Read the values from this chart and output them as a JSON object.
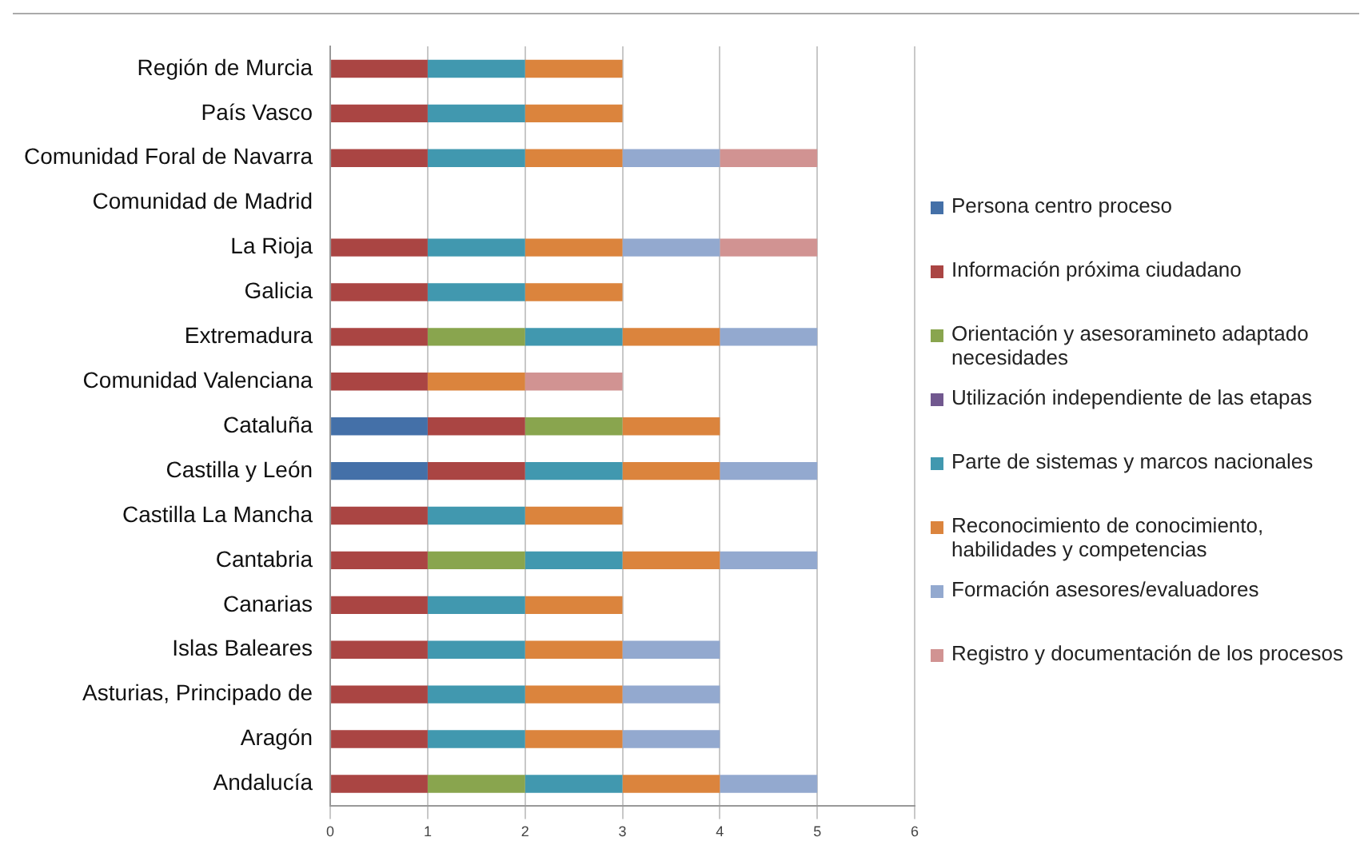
{
  "chart_data": {
    "type": "bar",
    "orientation": "horizontal",
    "stacked": true,
    "categories": [
      "Región de Murcia",
      "País Vasco",
      "Comunidad Foral de Navarra",
      "Comunidad de Madrid",
      "La Rioja",
      "Galicia",
      "Extremadura",
      "Comunidad Valenciana",
      "Cataluña",
      "Castilla y León",
      "Castilla La Mancha",
      "Cantabria",
      "Canarias",
      "Islas Baleares",
      "Asturias, Principado de",
      "Aragón",
      "Andalucía"
    ],
    "series": [
      {
        "name": "Persona centro proceso",
        "color": "#4470a8",
        "values": [
          0,
          0,
          0,
          0,
          0,
          0,
          0,
          0,
          1,
          1,
          0,
          0,
          0,
          0,
          0,
          0,
          0
        ]
      },
      {
        "name": "Información próxima ciudadano",
        "color": "#aa4543",
        "values": [
          1,
          1,
          1,
          0,
          1,
          1,
          1,
          1,
          1,
          1,
          1,
          1,
          1,
          1,
          1,
          1,
          1
        ]
      },
      {
        "name": "Orientación y asesoramineto adaptado necesidades",
        "color": "#89a54e",
        "values": [
          0,
          0,
          0,
          0,
          0,
          0,
          1,
          0,
          1,
          0,
          0,
          1,
          0,
          0,
          0,
          0,
          1
        ]
      },
      {
        "name": "Utilización independiente de las etapas",
        "color": "#71588f",
        "values": [
          0,
          0,
          0,
          0,
          0,
          0,
          0,
          0,
          0,
          0,
          0,
          0,
          0,
          0,
          0,
          0,
          0
        ]
      },
      {
        "name": "Parte de sistemas y marcos nacionales",
        "color": "#4198af",
        "values": [
          1,
          1,
          1,
          0,
          1,
          1,
          1,
          0,
          0,
          1,
          1,
          1,
          1,
          1,
          1,
          1,
          1
        ]
      },
      {
        "name": "Reconocimiento de conocimiento, habilidades y competencias",
        "color": "#db843d",
        "values": [
          1,
          1,
          1,
          0,
          1,
          1,
          1,
          1,
          1,
          1,
          1,
          1,
          1,
          1,
          1,
          1,
          1
        ]
      },
      {
        "name": "Formación asesores/evaluadores",
        "color": "#93a9cf",
        "values": [
          0,
          0,
          1,
          0,
          1,
          0,
          1,
          0,
          0,
          1,
          0,
          1,
          0,
          1,
          1,
          1,
          1
        ]
      },
      {
        "name": "Registro y documentación de los procesos",
        "color": "#d19392",
        "values": [
          0,
          0,
          1,
          0,
          1,
          0,
          0,
          1,
          0,
          0,
          0,
          0,
          0,
          0,
          0,
          0,
          0
        ]
      }
    ],
    "xlim": [
      0,
      6
    ],
    "xticks": [
      0,
      1,
      2,
      3,
      4,
      5,
      6
    ],
    "grid": "x",
    "legend": "right"
  }
}
